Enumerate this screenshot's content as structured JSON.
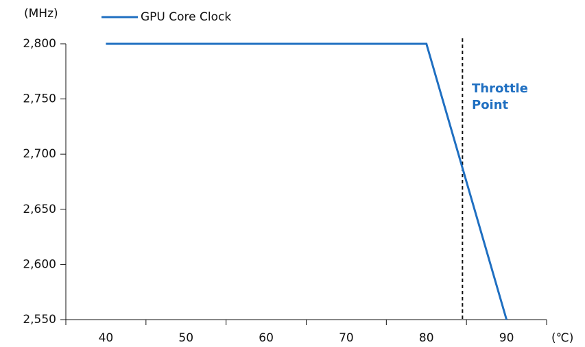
{
  "chart_data": {
    "type": "line",
    "y_unit": "(MHz)",
    "x_unit": "(℃)",
    "series": [
      {
        "name": "GPU Core Clock",
        "color": "#1f6fc1",
        "x": [
          40,
          80,
          90
        ],
        "values": [
          2800,
          2800,
          2550
        ]
      }
    ],
    "xlim": [
      35,
      95
    ],
    "xticks": [
      40,
      50,
      60,
      70,
      80,
      90
    ],
    "xtick_marks": [
      35,
      45,
      55,
      65,
      75,
      85,
      95
    ],
    "ylim": [
      2550,
      2800
    ],
    "yticks": [
      {
        "value": 2550,
        "label": "2,550"
      },
      {
        "value": 2600,
        "label": "2,600"
      },
      {
        "value": 2650,
        "label": "2,650"
      },
      {
        "value": 2700,
        "label": "2,700"
      },
      {
        "value": 2750,
        "label": "2,750"
      },
      {
        "value": 2800,
        "label": "2,800"
      }
    ],
    "annotation": {
      "x": 84.5,
      "lines": [
        "Throttle",
        "Point"
      ]
    },
    "legend": "top-left"
  }
}
